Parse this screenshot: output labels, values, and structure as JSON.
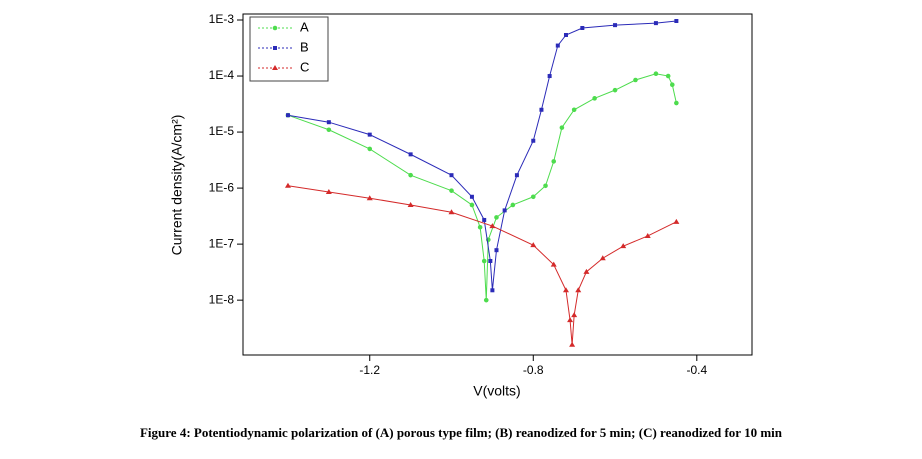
{
  "chart_data": {
    "type": "scatter",
    "log_y": true,
    "xlabel": "V(volts)",
    "ylabel": "Current density(A/cm²)",
    "caption": "Figure 4: Potentiodynamic polarization of (A) porous type film; (B) reanodized for 5 min; (C) reanodized for 10 min",
    "legend": "upper left",
    "xlim": [
      -1.51,
      -0.265
    ],
    "ylim": [
      1.05e-09,
      0.00128
    ],
    "xticks": [
      -1.2,
      -0.8,
      -0.4
    ],
    "yticks": [
      {
        "value": 1e-08,
        "label": "1E-8"
      },
      {
        "value": 1e-07,
        "label": "1E-7"
      },
      {
        "value": 1e-06,
        "label": "1E-6"
      },
      {
        "value": 1e-05,
        "label": "1E-5"
      },
      {
        "value": 0.0001,
        "label": "1E-4"
      },
      {
        "value": 0.001,
        "label": "1E-3"
      }
    ],
    "series": [
      {
        "name": "A",
        "color": "#4ddc4d",
        "marker": "circle",
        "x": [
          -1.4,
          -1.3,
          -1.2,
          -1.1,
          -1.0,
          -0.95,
          -0.93,
          -0.92,
          -0.915,
          -0.91,
          -0.89,
          -0.85,
          -0.8,
          -0.77,
          -0.75,
          -0.73,
          -0.7,
          -0.65,
          -0.6,
          -0.55,
          -0.5,
          -0.47,
          -0.46,
          -0.45
        ],
        "values": [
          2e-05,
          1.1e-05,
          5e-06,
          1.7e-06,
          9e-07,
          5e-07,
          2e-07,
          5e-08,
          1e-08,
          1.2e-07,
          3e-07,
          5e-07,
          7e-07,
          1.1e-06,
          3e-06,
          1.2e-05,
          2.5e-05,
          4e-05,
          5.6e-05,
          8.5e-05,
          0.00011,
          0.0001,
          7e-05,
          3.3e-05
        ]
      },
      {
        "name": "B",
        "color": "#2b2bb8",
        "marker": "square",
        "x": [
          -1.4,
          -1.3,
          -1.2,
          -1.1,
          -1.0,
          -0.95,
          -0.92,
          -0.905,
          -0.9,
          -0.89,
          -0.87,
          -0.84,
          -0.8,
          -0.78,
          -0.76,
          -0.74,
          -0.72,
          -0.68,
          -0.6,
          -0.5,
          -0.45
        ],
        "values": [
          2e-05,
          1.5e-05,
          9e-06,
          4e-06,
          1.7e-06,
          7e-07,
          2.7e-07,
          5e-08,
          1.5e-08,
          7.8e-08,
          4e-07,
          1.7e-06,
          7e-06,
          2.5e-05,
          0.0001,
          0.00035,
          0.00054,
          0.00072,
          0.00081,
          0.00088,
          0.00096
        ]
      },
      {
        "name": "C",
        "color": "#d42a2a",
        "marker": "triangle",
        "x": [
          -1.4,
          -1.3,
          -1.2,
          -1.1,
          -1.0,
          -0.9,
          -0.8,
          -0.75,
          -0.72,
          -0.71,
          -0.705,
          -0.7,
          -0.69,
          -0.67,
          -0.63,
          -0.58,
          -0.52,
          -0.45
        ],
        "values": [
          1.1e-06,
          8.5e-07,
          6.6e-07,
          5e-07,
          3.7e-07,
          2.1e-07,
          9.6e-08,
          4.3e-08,
          1.5e-08,
          4.4e-09,
          1.6e-09,
          5.4e-09,
          1.5e-08,
          3.2e-08,
          5.6e-08,
          9.2e-08,
          1.4e-07,
          2.5e-07
        ]
      }
    ]
  }
}
